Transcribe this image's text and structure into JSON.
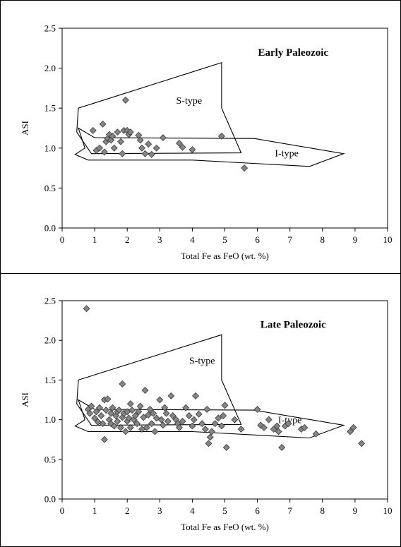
{
  "chart_data": [
    {
      "type": "scatter",
      "title": "Early Paleozoic",
      "xlabel": "Total Fe as FeO (wt. %)",
      "ylabel": "ASI",
      "xlim": [
        0,
        10
      ],
      "ylim": [
        0,
        2.5
      ],
      "xticks": [
        "0",
        "1",
        "2",
        "3",
        "4",
        "5",
        "6",
        "7",
        "8",
        "9",
        "10"
      ],
      "yticks": [
        "0.0",
        "0.5",
        "1.0",
        "1.5",
        "2.0",
        "2.5"
      ],
      "fields": [
        {
          "label": "S-type",
          "label_at": [
            3.9,
            1.6
          ],
          "polygon": [
            [
              0.5,
              1.5
            ],
            [
              4.9,
              2.07
            ],
            [
              4.9,
              1.5
            ],
            [
              5.5,
              0.94
            ],
            [
              0.9,
              0.93
            ],
            [
              0.45,
              1.2
            ]
          ]
        },
        {
          "label": "I-type",
          "label_at": [
            6.9,
            0.94
          ],
          "polygon": [
            [
              0.5,
              1.25
            ],
            [
              1.0,
              1.13
            ],
            [
              5.9,
              1.12
            ],
            [
              8.65,
              0.93
            ],
            [
              7.6,
              0.77
            ],
            [
              4.0,
              0.85
            ],
            [
              0.8,
              0.85
            ],
            [
              0.4,
              0.92
            ],
            [
              0.7,
              1.0
            ]
          ]
        }
      ],
      "points": [
        [
          0.95,
          1.22
        ],
        [
          1.05,
          0.97
        ],
        [
          1.15,
          1.0
        ],
        [
          1.25,
          1.3
        ],
        [
          1.3,
          0.95
        ],
        [
          1.35,
          1.08
        ],
        [
          1.4,
          1.12
        ],
        [
          1.45,
          1.17
        ],
        [
          1.5,
          1.1
        ],
        [
          1.55,
          1.15
        ],
        [
          1.6,
          1.0
        ],
        [
          1.7,
          1.2
        ],
        [
          1.8,
          1.08
        ],
        [
          1.85,
          0.93
        ],
        [
          1.9,
          1.22
        ],
        [
          1.95,
          1.6
        ],
        [
          2.0,
          1.22
        ],
        [
          2.05,
          1.17
        ],
        [
          2.1,
          1.2
        ],
        [
          2.35,
          1.16
        ],
        [
          2.4,
          1.1
        ],
        [
          2.45,
          1.0
        ],
        [
          2.55,
          0.93
        ],
        [
          2.65,
          1.05
        ],
        [
          2.75,
          0.92
        ],
        [
          2.9,
          1.0
        ],
        [
          3.1,
          1.13
        ],
        [
          3.6,
          1.06
        ],
        [
          3.7,
          1.01
        ],
        [
          4.0,
          0.98
        ],
        [
          4.9,
          1.15
        ],
        [
          5.6,
          0.75
        ]
      ]
    },
    {
      "type": "scatter",
      "title": "Late Paleozoic",
      "xlabel": "Total Fe as FeO (wt. %)",
      "ylabel": "ASI",
      "xlim": [
        0,
        10
      ],
      "ylim": [
        0,
        2.5
      ],
      "xticks": [
        "0",
        "1",
        "2",
        "3",
        "4",
        "5",
        "6",
        "7",
        "8",
        "9",
        "10"
      ],
      "yticks": [
        "0.0",
        "0.5",
        "1.0",
        "1.5",
        "2.0",
        "2.5"
      ],
      "fields": [
        {
          "label": "S-type",
          "label_at": [
            4.3,
            1.75
          ],
          "polygon": [
            [
              0.5,
              1.5
            ],
            [
              4.9,
              2.07
            ],
            [
              4.9,
              1.5
            ],
            [
              5.5,
              0.94
            ],
            [
              0.9,
              0.93
            ],
            [
              0.45,
              1.2
            ]
          ]
        },
        {
          "label": "I-type",
          "label_at": [
            7.0,
            1.0
          ],
          "polygon": [
            [
              0.5,
              1.25
            ],
            [
              1.0,
              1.13
            ],
            [
              5.9,
              1.12
            ],
            [
              8.65,
              0.93
            ],
            [
              7.6,
              0.77
            ],
            [
              4.0,
              0.85
            ],
            [
              0.8,
              0.85
            ],
            [
              0.4,
              0.92
            ],
            [
              0.7,
              1.0
            ]
          ]
        }
      ],
      "points": [
        [
          0.75,
          2.4
        ],
        [
          0.8,
          1.13
        ],
        [
          0.85,
          1.08
        ],
        [
          0.9,
          1.17
        ],
        [
          1.0,
          1.02
        ],
        [
          1.05,
          1.1
        ],
        [
          1.1,
          0.97
        ],
        [
          1.15,
          1.15
        ],
        [
          1.2,
          1.05
        ],
        [
          1.25,
          0.95
        ],
        [
          1.3,
          1.25
        ],
        [
          1.3,
          0.75
        ],
        [
          1.35,
          1.12
        ],
        [
          1.4,
          1.26
        ],
        [
          1.45,
          1.0
        ],
        [
          1.5,
          1.08
        ],
        [
          1.5,
          0.95
        ],
        [
          1.55,
          1.15
        ],
        [
          1.6,
          0.92
        ],
        [
          1.65,
          1.05
        ],
        [
          1.7,
          1.1
        ],
        [
          1.7,
          0.98
        ],
        [
          1.75,
          1.12
        ],
        [
          1.8,
          0.9
        ],
        [
          1.85,
          1.45
        ],
        [
          1.85,
          1.03
        ],
        [
          1.9,
          1.08
        ],
        [
          1.95,
          0.85
        ],
        [
          2.0,
          1.1
        ],
        [
          2.0,
          0.98
        ],
        [
          2.05,
          1.02
        ],
        [
          2.1,
          1.2
        ],
        [
          2.1,
          0.9
        ],
        [
          2.15,
          1.12
        ],
        [
          2.2,
          1.0
        ],
        [
          2.25,
          1.05
        ],
        [
          2.3,
          0.95
        ],
        [
          2.35,
          1.1
        ],
        [
          2.4,
          1.17
        ],
        [
          2.45,
          0.88
        ],
        [
          2.5,
          1.03
        ],
        [
          2.55,
          1.37
        ],
        [
          2.6,
          0.9
        ],
        [
          2.65,
          1.06
        ],
        [
          2.7,
          1.13
        ],
        [
          2.75,
          0.95
        ],
        [
          2.8,
          1.08
        ],
        [
          2.85,
          0.85
        ],
        [
          2.9,
          1.02
        ],
        [
          3.0,
          1.25
        ],
        [
          3.05,
          1.0
        ],
        [
          3.1,
          0.93
        ],
        [
          3.15,
          1.15
        ],
        [
          3.2,
          1.08
        ],
        [
          3.25,
          0.98
        ],
        [
          3.35,
          1.3
        ],
        [
          3.4,
          1.05
        ],
        [
          3.5,
          1.0
        ],
        [
          3.55,
          0.95
        ],
        [
          3.6,
          0.9
        ],
        [
          3.7,
          0.98
        ],
        [
          3.8,
          1.15
        ],
        [
          3.9,
          1.05
        ],
        [
          4.0,
          0.92
        ],
        [
          4.05,
          1.0
        ],
        [
          4.1,
          1.3
        ],
        [
          4.2,
          1.07
        ],
        [
          4.3,
          0.95
        ],
        [
          4.4,
          0.88
        ],
        [
          4.45,
          1.13
        ],
        [
          4.5,
          0.7
        ],
        [
          4.55,
          0.78
        ],
        [
          4.6,
          0.85
        ],
        [
          4.7,
          0.95
        ],
        [
          4.8,
          1.02
        ],
        [
          4.9,
          0.92
        ],
        [
          4.95,
          1.05
        ],
        [
          5.0,
          1.18
        ],
        [
          5.05,
          0.65
        ],
        [
          5.3,
          1.0
        ],
        [
          5.5,
          0.88
        ],
        [
          6.0,
          1.13
        ],
        [
          6.1,
          0.93
        ],
        [
          6.2,
          0.9
        ],
        [
          6.35,
          1.0
        ],
        [
          6.5,
          0.88
        ],
        [
          6.6,
          0.92
        ],
        [
          6.65,
          0.85
        ],
        [
          6.75,
          0.65
        ],
        [
          6.85,
          0.92
        ],
        [
          6.95,
          0.95
        ],
        [
          7.35,
          0.88
        ],
        [
          7.45,
          0.9
        ],
        [
          7.8,
          0.82
        ],
        [
          8.85,
          0.85
        ],
        [
          8.95,
          0.9
        ],
        [
          9.2,
          0.7
        ]
      ]
    }
  ]
}
